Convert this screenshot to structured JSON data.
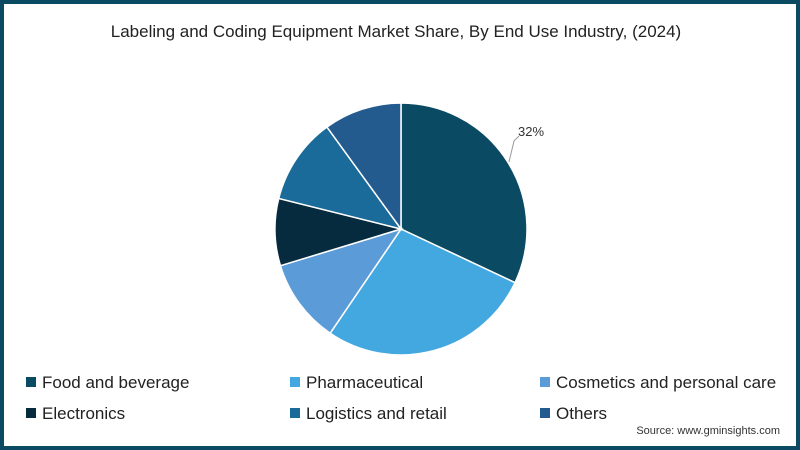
{
  "chart_data": {
    "type": "pie",
    "title": "Labeling and Coding Equipment Market Share, By End Use Industry, (2024)",
    "categories": [
      "Food and beverage",
      "Pharmaceutical",
      "Cosmetics and personal care",
      "Electronics",
      "Logistics and retail",
      "Others"
    ],
    "values": [
      32,
      27.5,
      10.8,
      8.6,
      11.1,
      10
    ],
    "colors": [
      "#0b4a63",
      "#44a8e0",
      "#5b9bd8",
      "#062a3e",
      "#1a6a9a",
      "#245b8e"
    ],
    "data_labels": [
      {
        "category": "Food and beverage",
        "text": "32%"
      }
    ],
    "legend_position": "bottom"
  },
  "title": "Labeling and Coding Equipment Market Share, By End Use Industry, (2024)",
  "pie_label": "32%",
  "legend": [
    {
      "label": "Food and beverage",
      "color": "#0b4a63"
    },
    {
      "label": "Pharmaceutical",
      "color": "#44a8e0"
    },
    {
      "label": "Cosmetics and personal care",
      "color": "#5b9bd8"
    },
    {
      "label": "Electronics",
      "color": "#062a3e"
    },
    {
      "label": "Logistics and retail",
      "color": "#1a6a9a"
    },
    {
      "label": "Others",
      "color": "#245b8e"
    }
  ],
  "source": "Source: www.gminsights.com"
}
